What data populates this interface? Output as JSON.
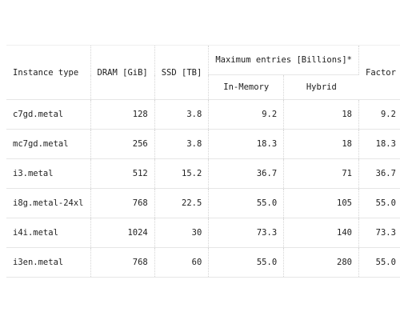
{
  "table": {
    "headers": {
      "instance_type": "Instance type",
      "dram": "DRAM [GiB]",
      "ssd": "SSD [TB]",
      "max_entries": "Maximum entries [Billions]*",
      "in_memory": "In-Memory",
      "hybrid": "Hybrid",
      "factor": "Factor"
    },
    "rows": [
      {
        "instance": "c7gd.metal",
        "dram": "128",
        "ssd": "3.8",
        "in_memory": "9.2",
        "hybrid": "18",
        "factor": "9.2"
      },
      {
        "instance": "mc7gd.metal",
        "dram": "256",
        "ssd": "3.8",
        "in_memory": "18.3",
        "hybrid": "18",
        "factor": "18.3"
      },
      {
        "instance": "i3.metal",
        "dram": "512",
        "ssd": "15.2",
        "in_memory": "36.7",
        "hybrid": "71",
        "factor": "36.7"
      },
      {
        "instance": "i8g.metal-24xl",
        "dram": "768",
        "ssd": "22.5",
        "in_memory": "55.0",
        "hybrid": "105",
        "factor": "55.0"
      },
      {
        "instance": "i4i.metal",
        "dram": "1024",
        "ssd": "30",
        "in_memory": "73.3",
        "hybrid": "140",
        "factor": "73.3"
      },
      {
        "instance": "i3en.metal",
        "dram": "768",
        "ssd": "60",
        "in_memory": "55.0",
        "hybrid": "280",
        "factor": "55.0"
      }
    ]
  }
}
